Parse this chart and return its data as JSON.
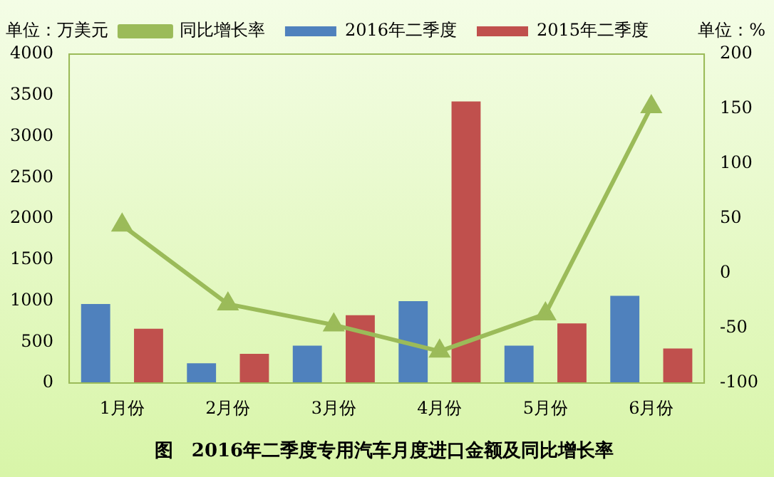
{
  "chart_data": {
    "type": "bar",
    "title": "图　2016年二季度专用汽车月度进口金额及同比增长率",
    "ylabel": "单位：万美元",
    "y2label": "单位：%",
    "categories": [
      "1月份",
      "2月份",
      "3月份",
      "4月份",
      "5月份",
      "6月份"
    ],
    "series": [
      {
        "name": "2016年二季度",
        "color": "#4f81bd",
        "values": [
          960,
          240,
          455,
          995,
          455,
          1060
        ]
      },
      {
        "name": "2015年二季度",
        "color": "#c0504d",
        "values": [
          660,
          355,
          825,
          3425,
          725,
          420
        ]
      },
      {
        "name": "同比增长率",
        "type": "line",
        "axis": "y2",
        "color": "#9bbb59",
        "marker": "triangle",
        "values": [
          44,
          -28,
          -47,
          -71,
          -37,
          152
        ]
      }
    ],
    "ylim": [
      0,
      4000
    ],
    "yticks": [
      0,
      500,
      1000,
      1500,
      2000,
      2500,
      3000,
      3500,
      4000
    ],
    "y2lim": [
      -100,
      200
    ],
    "y2ticks": [
      -100,
      -50,
      0,
      50,
      100,
      150,
      200
    ],
    "grid": false,
    "legend": "top"
  }
}
